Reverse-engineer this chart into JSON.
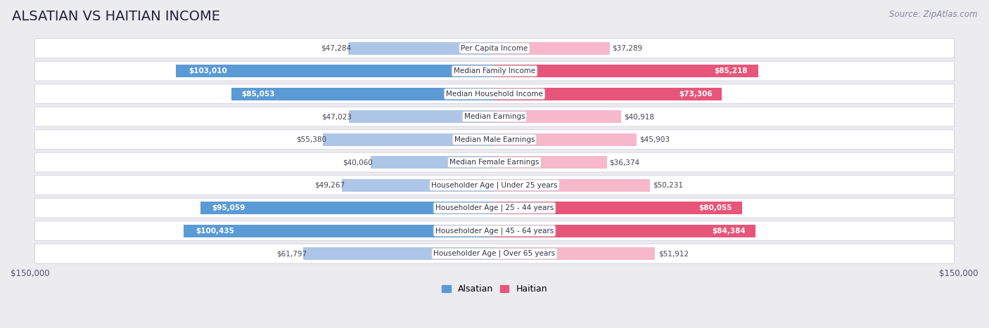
{
  "title": "ALSATIAN VS HAITIAN INCOME",
  "source": "Source: ZipAtlas.com",
  "categories": [
    "Per Capita Income",
    "Median Family Income",
    "Median Household Income",
    "Median Earnings",
    "Median Male Earnings",
    "Median Female Earnings",
    "Householder Age | Under 25 years",
    "Householder Age | 25 - 44 years",
    "Householder Age | 45 - 64 years",
    "Householder Age | Over 65 years"
  ],
  "alsatian_values": [
    47284,
    103010,
    85053,
    47023,
    55380,
    40060,
    49267,
    95059,
    100435,
    61797
  ],
  "haitian_values": [
    37289,
    85218,
    73306,
    40918,
    45903,
    36374,
    50231,
    80055,
    84384,
    51912
  ],
  "alsatian_labels": [
    "$47,284",
    "$103,010",
    "$85,053",
    "$47,023",
    "$55,380",
    "$40,060",
    "$49,267",
    "$95,059",
    "$100,435",
    "$61,797"
  ],
  "haitian_labels": [
    "$37,289",
    "$85,218",
    "$73,306",
    "$40,918",
    "$45,903",
    "$36,374",
    "$50,231",
    "$80,055",
    "$84,384",
    "$51,912"
  ],
  "max_value": 150000,
  "alsatian_color_light": "#adc6e8",
  "alsatian_color_dark": "#5b9bd5",
  "haitian_color_light": "#f7b8cc",
  "haitian_color_dark": "#e8557a",
  "row_bg_color": "#ffffff",
  "row_border_color": "#d8d8e0",
  "outer_bg_color": "#ebebf0",
  "label_color_dark": "#444455",
  "label_color_white": "#ffffff",
  "als_white_label_threshold": 80000,
  "hai_white_label_threshold": 65000,
  "legend_alsatian": "Alsatian",
  "legend_haitian": "Haitian",
  "title_fontsize": 14,
  "source_fontsize": 8.5,
  "label_fontsize": 7.5,
  "category_fontsize": 7.5,
  "axis_label_fontsize": 8.5
}
